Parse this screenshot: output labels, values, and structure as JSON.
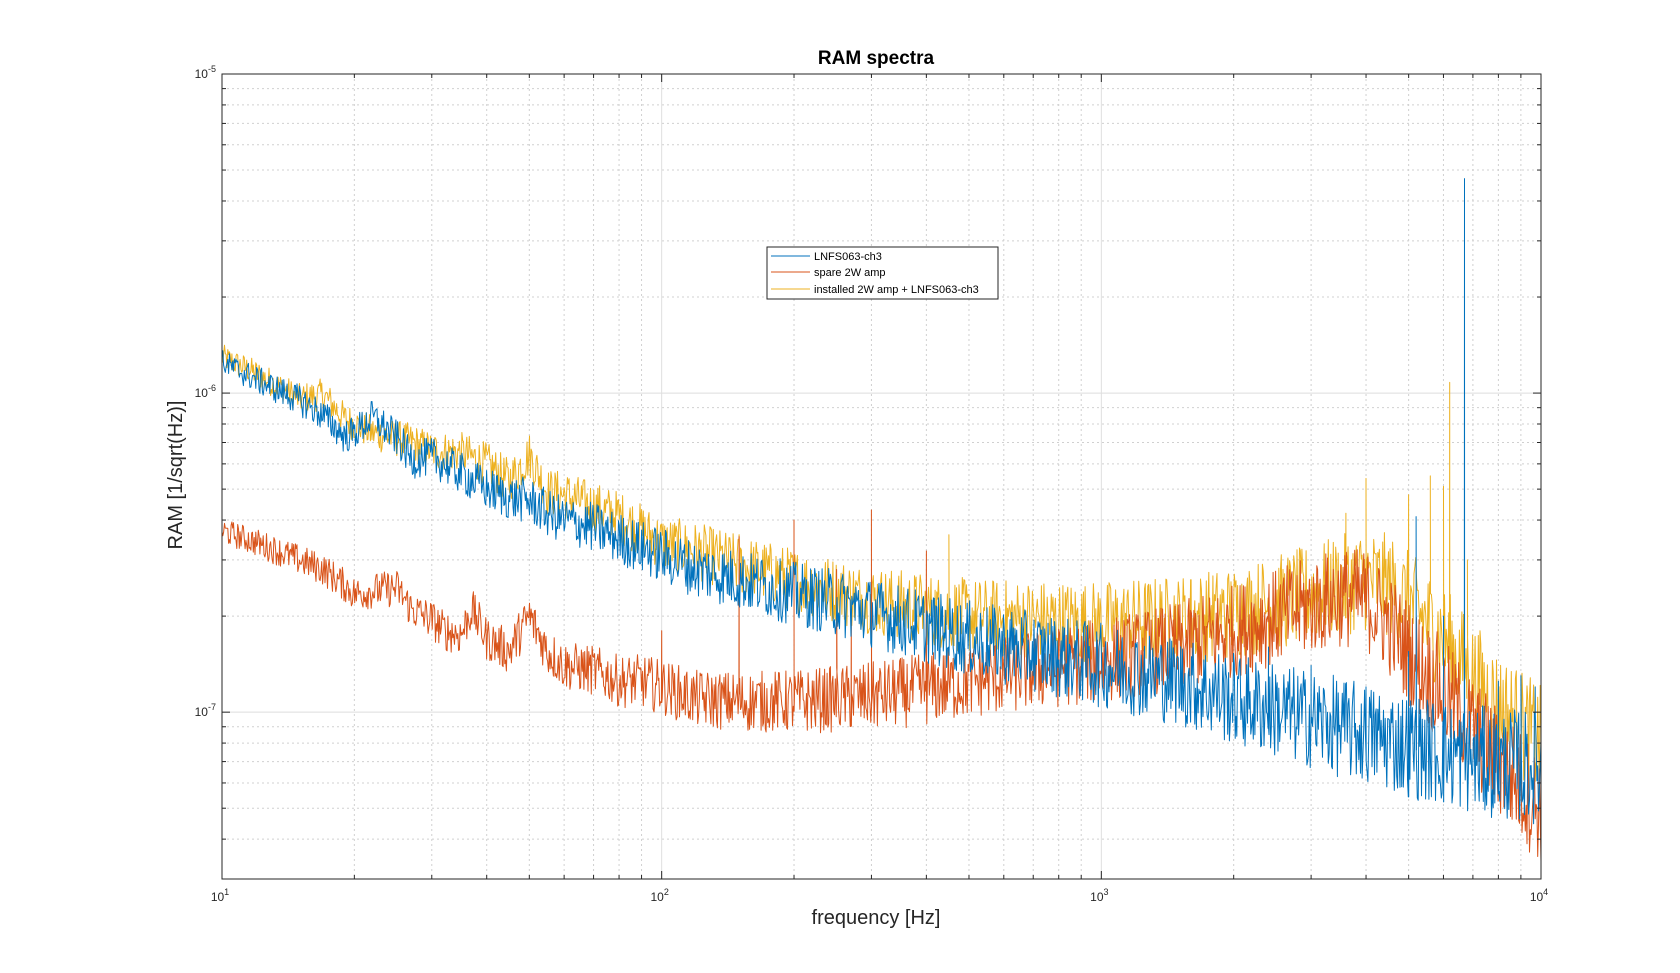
{
  "chart_data": {
    "type": "line",
    "title": "RAM spectra",
    "xlabel": "frequency [Hz]",
    "ylabel": "RAM [1/sqrt(Hz)]",
    "xscale": "log",
    "yscale": "log",
    "xlim": [
      10,
      10000
    ],
    "ylim": [
      3e-08,
      1e-05
    ],
    "grid": true,
    "minor_grid": true,
    "legend_placement": "upper-center",
    "x_ticks": [
      {
        "value": 10,
        "base": "10",
        "exp": "1"
      },
      {
        "value": 100,
        "base": "10",
        "exp": "2"
      },
      {
        "value": 1000,
        "base": "10",
        "exp": "3"
      },
      {
        "value": 10000,
        "base": "10",
        "exp": "4"
      }
    ],
    "y_ticks": [
      {
        "value": 1e-07,
        "base": "10",
        "exp": "-7"
      },
      {
        "value": 1e-06,
        "base": "10",
        "exp": "-6"
      },
      {
        "value": 1e-05,
        "base": "10",
        "exp": "-5"
      }
    ],
    "series": [
      {
        "name": "LNFS063-ch3",
        "color": "#0072BD",
        "x": [
          10,
          12,
          15,
          17,
          19,
          20,
          22,
          25,
          27,
          30,
          35,
          40,
          45,
          50,
          55,
          60,
          70,
          80,
          100,
          120,
          150,
          200,
          250,
          300,
          400,
          500,
          700,
          1000,
          1500,
          2000,
          3000,
          4000,
          5000,
          6000,
          7000,
          8000,
          10000
        ],
        "y": [
          1.25e-06,
          1.1e-06,
          9.5e-07,
          8.5e-07,
          7.3e-07,
          7.5e-07,
          8.4e-07,
          7.2e-07,
          6.2e-07,
          6.3e-07,
          5.6e-07,
          5e-07,
          4.7e-07,
          4.6e-07,
          4.2e-07,
          4e-07,
          3.8e-07,
          3.5e-07,
          3.1e-07,
          2.8e-07,
          2.6e-07,
          2.35e-07,
          2.2e-07,
          2.05e-07,
          1.85e-07,
          1.7e-07,
          1.55e-07,
          1.4e-07,
          1.25e-07,
          1.1e-07,
          9.5e-08,
          8.5e-08,
          7.9e-08,
          7.4e-08,
          7.1e-08,
          6.9e-08,
          6.7e-08
        ],
        "peaks": [
          {
            "x": 2400,
            "y": 1.6e-07
          },
          {
            "x": 3000,
            "y": 1.4e-07
          },
          {
            "x": 4000,
            "y": 1.2e-07
          },
          {
            "x": 5000,
            "y": 1.55e-07
          },
          {
            "x": 5200,
            "y": 4.1e-07
          },
          {
            "x": 6000,
            "y": 2e-07
          },
          {
            "x": 6700,
            "y": 4.7e-06
          },
          {
            "x": 8000,
            "y": 1.25e-07
          },
          {
            "x": 9000,
            "y": 1.3e-07
          },
          {
            "x": 9700,
            "y": 1.2e-07
          }
        ]
      },
      {
        "name": "spare 2W amp",
        "color": "#D95319",
        "x": [
          10,
          12,
          15,
          17,
          19,
          20,
          22,
          25,
          27,
          30,
          32,
          35,
          37,
          40,
          45,
          50,
          55,
          60,
          70,
          80,
          90,
          100,
          120,
          150,
          200,
          250,
          300,
          400,
          500,
          700,
          1000,
          1500,
          2000,
          3000,
          3500,
          4000,
          4500,
          5000,
          6000,
          7000,
          8000,
          10000
        ],
        "y": [
          3.7e-07,
          3.4e-07,
          3e-07,
          2.8e-07,
          2.5e-07,
          2.35e-07,
          2.4e-07,
          2.45e-07,
          2.1e-07,
          1.95e-07,
          1.8e-07,
          1.75e-07,
          2.1e-07,
          1.7e-07,
          1.55e-07,
          2e-07,
          1.55e-07,
          1.4e-07,
          1.35e-07,
          1.25e-07,
          1.25e-07,
          1.2e-07,
          1.1e-07,
          1.08e-07,
          1.08e-07,
          1.1e-07,
          1.12e-07,
          1.18e-07,
          1.25e-07,
          1.35e-07,
          1.45e-07,
          1.6e-07,
          1.8e-07,
          2.15e-07,
          2.3e-07,
          2.25e-07,
          1.9e-07,
          1.55e-07,
          1.15e-07,
          8.8e-08,
          7e-08,
          5e-08
        ],
        "peaks": [
          {
            "x": 100,
            "y": 1.8e-07
          },
          {
            "x": 150,
            "y": 3.55e-07
          },
          {
            "x": 200,
            "y": 4e-07
          },
          {
            "x": 250,
            "y": 2.8e-07
          },
          {
            "x": 270,
            "y": 2.1e-07
          },
          {
            "x": 300,
            "y": 4.3e-07
          },
          {
            "x": 400,
            "y": 3.2e-07
          }
        ]
      },
      {
        "name": "installed 2W amp + LNFS063-ch3",
        "color": "#EDB120",
        "x": [
          10,
          12,
          15,
          17,
          19,
          20,
          22,
          25,
          27,
          30,
          35,
          40,
          45,
          50,
          55,
          60,
          70,
          80,
          100,
          120,
          150,
          200,
          250,
          300,
          400,
          500,
          700,
          1000,
          1500,
          2000,
          2500,
          3000,
          3500,
          4000,
          4500,
          5000,
          6000,
          7000,
          8000,
          10000
        ],
        "y": [
          1.3e-06,
          1.15e-06,
          9.6e-07,
          9.9e-07,
          8.3e-07,
          8e-07,
          7.5e-07,
          7.2e-07,
          7e-07,
          6.6e-07,
          6.5e-07,
          6e-07,
          5.3e-07,
          6.4e-07,
          4.9e-07,
          4.8e-07,
          4.4e-07,
          4.1e-07,
          3.4e-07,
          3.2e-07,
          2.9e-07,
          2.6e-07,
          2.4e-07,
          2.25e-07,
          2.1e-07,
          2e-07,
          1.95e-07,
          1.9e-07,
          1.95e-07,
          2.05e-07,
          2.2e-07,
          2.35e-07,
          2.5e-07,
          2.6e-07,
          2.5e-07,
          2.2e-07,
          1.7e-07,
          1.3e-07,
          1.05e-07,
          8e-08
        ],
        "peaks": [
          {
            "x": 150,
            "y": 3.6e-07
          },
          {
            "x": 450,
            "y": 3.6e-07
          },
          {
            "x": 1600,
            "y": 2.6e-07
          },
          {
            "x": 3600,
            "y": 4.2e-07
          },
          {
            "x": 4000,
            "y": 5.4e-07
          },
          {
            "x": 5000,
            "y": 4.8e-07
          },
          {
            "x": 5600,
            "y": 5.5e-07
          },
          {
            "x": 6000,
            "y": 5.1e-07
          },
          {
            "x": 6200,
            "y": 1.08e-06
          },
          {
            "x": 6800,
            "y": 3e-07
          }
        ]
      }
    ]
  }
}
